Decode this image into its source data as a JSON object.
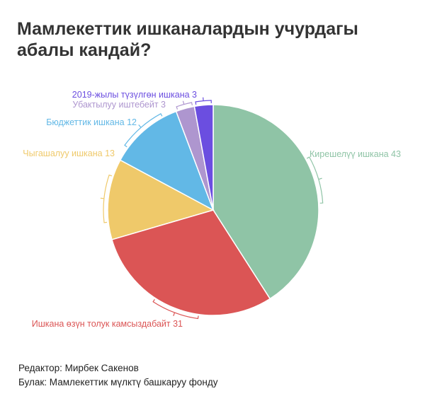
{
  "title": "Мамлекеттик ишканалардын учурдагы абалы кандай?",
  "footer": {
    "editor": "Редактор: Мирбек Сакенов",
    "source": "Булак: Мамлекеттик мүлктү башкаруу фонду"
  },
  "chart_data": {
    "type": "pie",
    "title": "Мамлекеттик ишканалардын учурдагы абалы кандай?",
    "slices": [
      {
        "label": "Кирешелүү ишкана 43",
        "name": "Кирешелүү ишкана",
        "value": 43,
        "color": "#8fc4a6"
      },
      {
        "label": "Ишкана өзүн толук камсыздабайт 31",
        "name": "Ишкана өзүн толук камсыздабайт",
        "value": 31,
        "color": "#db5555"
      },
      {
        "label": "Чыгашалуу ишкана 13",
        "name": "Чыгашалуу ишкана",
        "value": 13,
        "color": "#efc96a"
      },
      {
        "label": "Бюджеттик ишкана 12",
        "name": "Бюджеттик ишкана",
        "value": 12,
        "color": "#62b8e6"
      },
      {
        "label": "Убактылуу иштебейт 3",
        "name": "Убактылуу иштебейт",
        "value": 3,
        "color": "#ae96cf"
      },
      {
        "label": "2019-жылы түзүлгөн ишкана 3",
        "name": "2019-жылы түзүлгөн ишкана",
        "value": 3,
        "color": "#6b4ee0"
      }
    ]
  }
}
